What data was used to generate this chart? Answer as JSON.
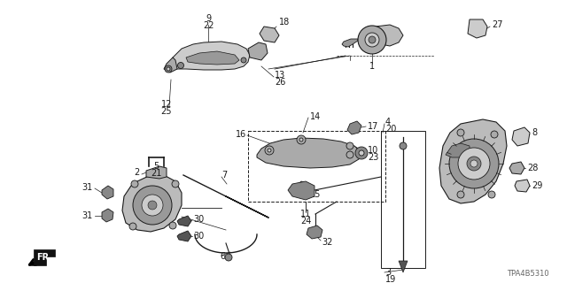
{
  "bg_color": "#ffffff",
  "line_color": "#1a1a1a",
  "watermark": "TPA4B5310",
  "fig_width": 6.4,
  "fig_height": 3.2,
  "dpi": 100
}
